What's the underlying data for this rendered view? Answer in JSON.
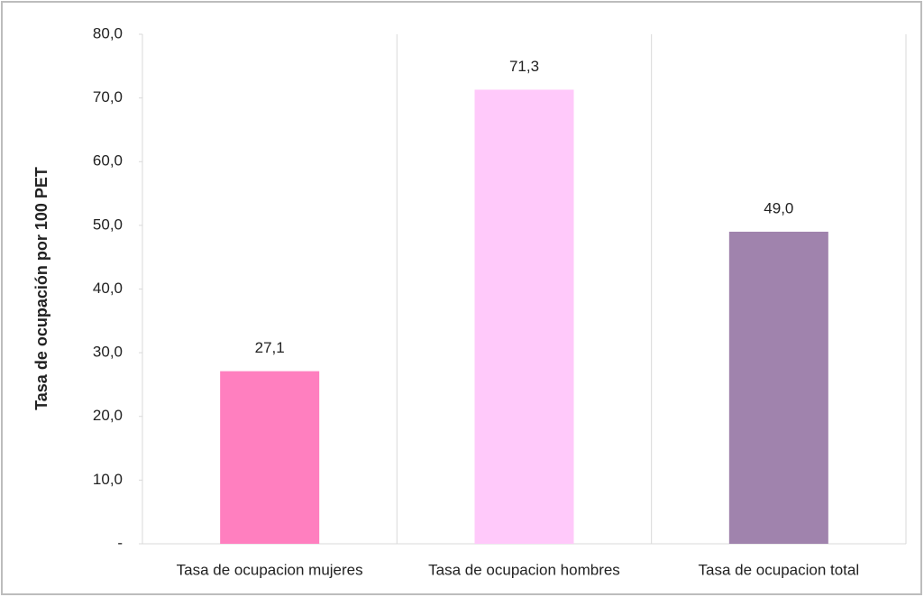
{
  "chart_data": {
    "type": "bar",
    "y_label": "Tasa de ocupación por 100 PET",
    "categories": [
      "Tasa de ocupacion mujeres",
      "Tasa de ocupacion hombres",
      "Tasa de ocupacion total"
    ],
    "values": [
      27.1,
      71.3,
      49.0
    ],
    "value_labels": [
      "27,1",
      "71,3",
      "49,0"
    ],
    "colors": [
      "#ff7fbf",
      "#ffc9fa",
      "#a083ad"
    ],
    "ylim": [
      0,
      80
    ],
    "yticks": [
      {
        "value": 0,
        "label": "-"
      },
      {
        "value": 10,
        "label": "10,0"
      },
      {
        "value": 20,
        "label": "20,0"
      },
      {
        "value": 30,
        "label": "30,0"
      },
      {
        "value": 40,
        "label": "40,0"
      },
      {
        "value": 50,
        "label": "50,0"
      },
      {
        "value": 60,
        "label": "60,0"
      },
      {
        "value": 70,
        "label": "70,0"
      },
      {
        "value": 80,
        "label": "80,0"
      }
    ],
    "grid": "x"
  }
}
